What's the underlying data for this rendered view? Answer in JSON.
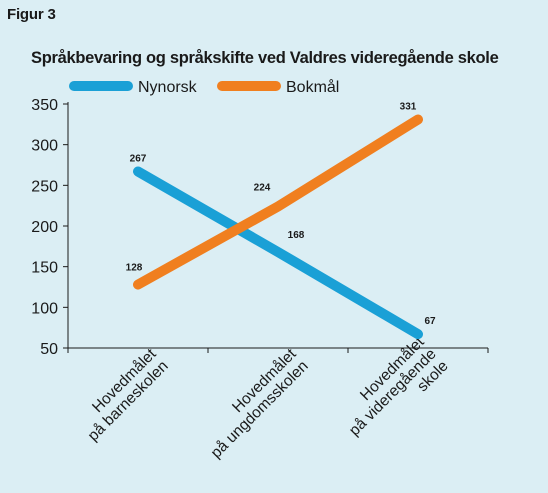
{
  "figure": {
    "label": "Figur 3"
  },
  "chart_data": {
    "type": "line",
    "title": "Språkbevaring og språkskifte ved Valdres videregående skole",
    "categories": [
      [
        "Hovedmålet",
        "på barneskolen"
      ],
      [
        "Hovedmålet",
        "på ungdomsskolen"
      ],
      [
        "Hovedmålet",
        "på videregående",
        "skole"
      ]
    ],
    "series": [
      {
        "name": "Nynorsk",
        "color": "#1aa0d6",
        "values": [
          267,
          168,
          67
        ]
      },
      {
        "name": "Bokmål",
        "color": "#f07f1f",
        "values": [
          128,
          224,
          331
        ]
      }
    ],
    "ylim": [
      50,
      350
    ],
    "yticks": [
      50,
      100,
      150,
      200,
      250,
      300,
      350
    ],
    "grid": false,
    "legend": "top-left",
    "data_labels": true
  }
}
